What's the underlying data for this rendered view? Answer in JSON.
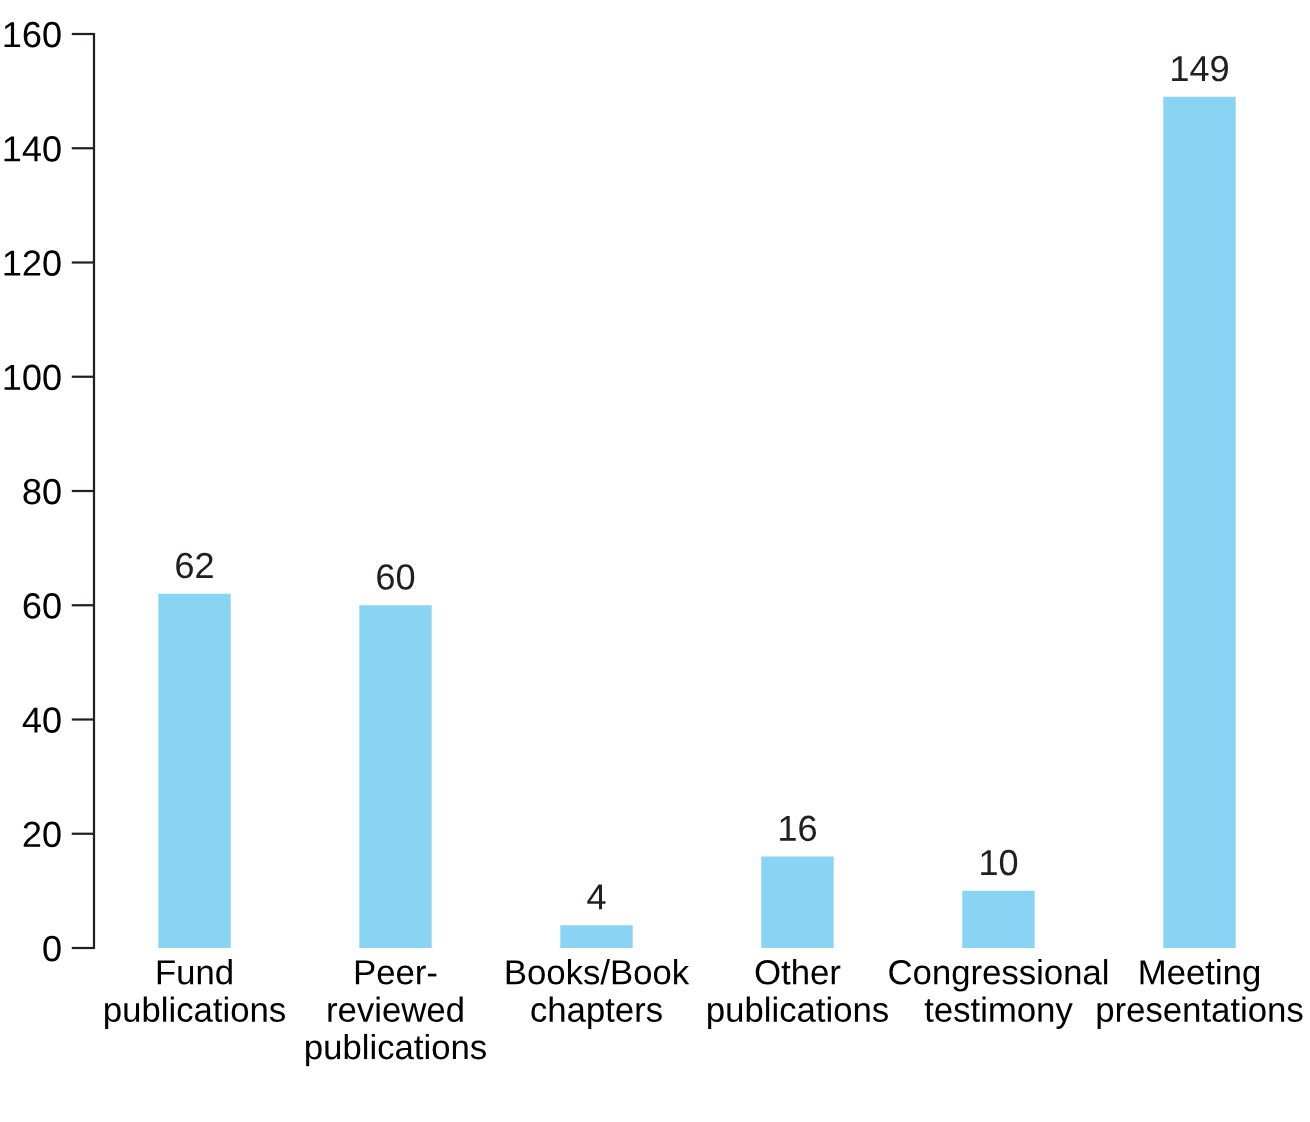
{
  "chart_data": {
    "type": "bar",
    "categories": [
      "Fund\npublications",
      "Peer-\nreviewed\npublications",
      "Books/Book\nchapters",
      "Other\npublications",
      "Congressional\ntestimony",
      "Meeting\npresentations"
    ],
    "values": [
      62,
      60,
      4,
      16,
      10,
      149
    ],
    "color": "#89d3f3",
    "ylim": [
      0,
      160
    ],
    "yticks": [
      0,
      20,
      40,
      60,
      80,
      100,
      120,
      140,
      160
    ],
    "data_labels": true,
    "grid": false
  }
}
